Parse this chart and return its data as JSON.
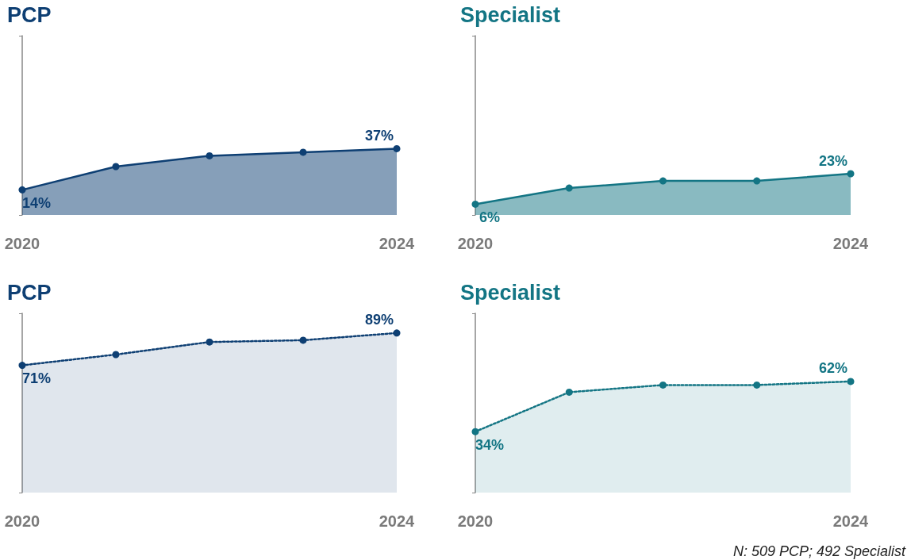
{
  "chart_data": [
    {
      "type": "area",
      "title": "PCP",
      "categories": [
        "2020",
        null,
        null,
        null,
        "2024"
      ],
      "series": [
        {
          "color": "#0e3f73",
          "values": [
            14,
            27,
            33,
            35,
            37
          ],
          "value_labels": [
            "14%",
            null,
            null,
            null,
            "37%"
          ]
        }
      ],
      "ylim": [
        0,
        100
      ],
      "line_style": "solid",
      "marker": "circle"
    },
    {
      "type": "area",
      "title": "Specialist",
      "categories": [
        "2020",
        null,
        null,
        null,
        "2024"
      ],
      "series": [
        {
          "color": "#137584",
          "values": [
            6,
            15,
            19,
            19,
            23
          ],
          "value_labels": [
            "6%",
            null,
            null,
            null,
            "23%"
          ]
        }
      ],
      "ylim": [
        0,
        100
      ],
      "line_style": "solid",
      "marker": "circle"
    },
    {
      "type": "area",
      "title": "PCP",
      "categories": [
        "2020",
        null,
        null,
        null,
        "2024"
      ],
      "series": [
        {
          "color": "#0e3f73",
          "values": [
            71,
            77,
            84,
            85,
            89
          ],
          "value_labels": [
            "71%",
            null,
            null,
            null,
            "89%"
          ]
        }
      ],
      "ylim": [
        0,
        100
      ],
      "line_style": "dotted",
      "marker": "circle"
    },
    {
      "type": "area",
      "title": "Specialist",
      "categories": [
        "2020",
        null,
        null,
        null,
        "2024"
      ],
      "series": [
        {
          "color": "#137584",
          "values": [
            34,
            56,
            60,
            60,
            62
          ],
          "value_labels": [
            "34%",
            null,
            null,
            null,
            "62%"
          ]
        }
      ],
      "ylim": [
        0,
        100
      ],
      "line_style": "dotted",
      "marker": "circle",
      "annotations": [
        "N: 509 PCP; 492 Specialist"
      ]
    }
  ]
}
